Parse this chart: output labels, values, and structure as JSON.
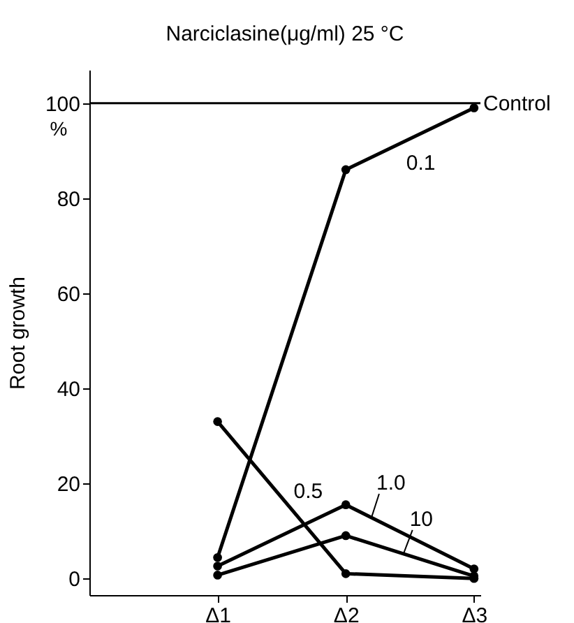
{
  "chart_data": {
    "type": "line",
    "title": "Narciclasine(μg/ml) 25 °C",
    "ylabel": "Root growth",
    "categories": [
      "Δ1",
      "Δ2",
      "Δ3"
    ],
    "series": [
      {
        "name": "0.1",
        "color": "#000000",
        "values": [
          4.4,
          86,
          99
        ]
      },
      {
        "name": "1.0",
        "color": "#000000",
        "values": [
          2.6,
          15.5,
          2
        ]
      },
      {
        "name": "10",
        "color": "#000000",
        "values": [
          0.7,
          9,
          0.5
        ]
      },
      {
        "name": "0.5",
        "color": "#000000",
        "values": [
          33,
          1,
          0
        ]
      }
    ],
    "ylim": [
      -3.5,
      107
    ],
    "yticks": [
      0,
      20,
      40,
      60,
      80,
      100
    ],
    "ref_lines": [
      {
        "axis": "y",
        "value": 100,
        "label": "Control",
        "color": "#000000"
      }
    ],
    "annotations": [
      "%"
    ],
    "grid": false,
    "legend": false,
    "marker": "circle",
    "line_style": "solid"
  }
}
